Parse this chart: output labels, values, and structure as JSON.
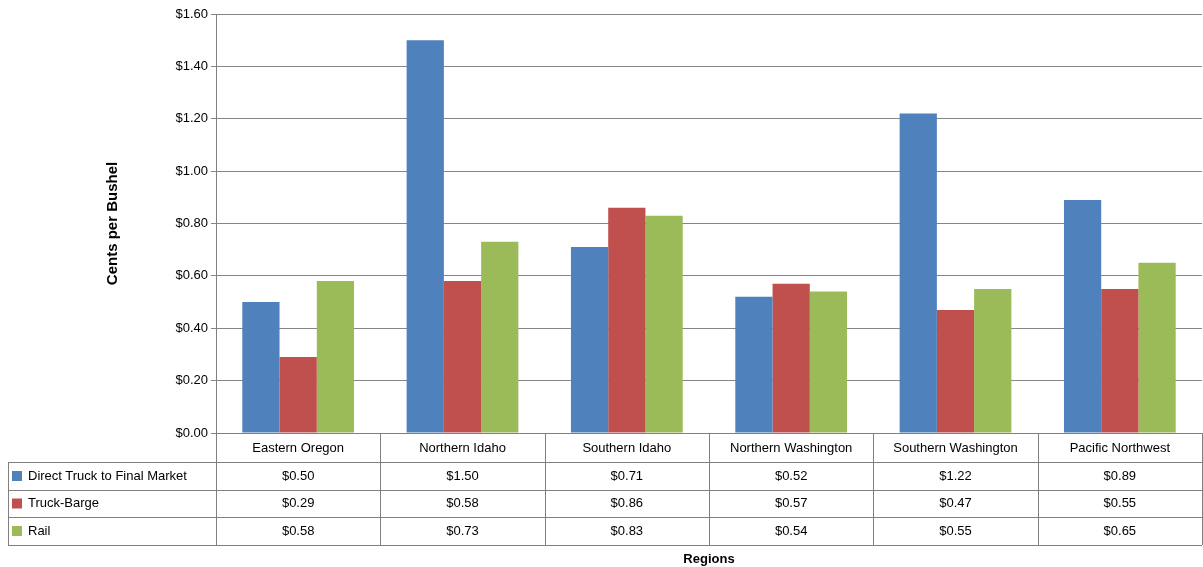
{
  "chart_data": {
    "type": "bar",
    "annotations": [
      "Regions"
    ],
    "ylabel": "Cents per Bushel",
    "categories": [
      "Eastern Oregon",
      "Northern Idaho",
      "Southern Idaho",
      "Northern Washington",
      "Southern Washington",
      "Pacific Northwest"
    ],
    "series": [
      {
        "name": "Direct Truck to Final Market",
        "color": "#4f81bd",
        "values": [
          0.5,
          1.5,
          0.71,
          0.52,
          1.22,
          0.89
        ],
        "value_labels": [
          "$0.50",
          "$1.50",
          "$0.71",
          "$0.52",
          "$1.22",
          "$0.89"
        ]
      },
      {
        "name": "Truck-Barge",
        "color": "#c0504d",
        "values": [
          0.29,
          0.58,
          0.86,
          0.57,
          0.47,
          0.55
        ],
        "value_labels": [
          "$0.29",
          "$0.58",
          "$0.86",
          "$0.57",
          "$0.47",
          "$0.55"
        ]
      },
      {
        "name": "Rail",
        "color": "#9bbb59",
        "values": [
          0.58,
          0.73,
          0.83,
          0.54,
          0.55,
          0.65
        ],
        "value_labels": [
          "$0.58",
          "$0.73",
          "$0.83",
          "$0.54",
          "$0.55",
          "$0.65"
        ]
      }
    ],
    "ylim": [
      0,
      1.6
    ],
    "yticks": [
      {
        "value": 0,
        "label": "$0.00"
      },
      {
        "value": 0.2,
        "label": "$0.20"
      },
      {
        "value": 0.4,
        "label": "$0.40"
      },
      {
        "value": 0.6,
        "label": "$0.60"
      },
      {
        "value": 0.8,
        "label": "$0.80"
      },
      {
        "value": 1.0,
        "label": "$1.00"
      },
      {
        "value": 1.2,
        "label": "$1.20"
      },
      {
        "value": 1.4,
        "label": "$1.40"
      },
      {
        "value": 1.6,
        "label": "$1.60"
      }
    ],
    "grid": "y",
    "legend": "bottom"
  }
}
